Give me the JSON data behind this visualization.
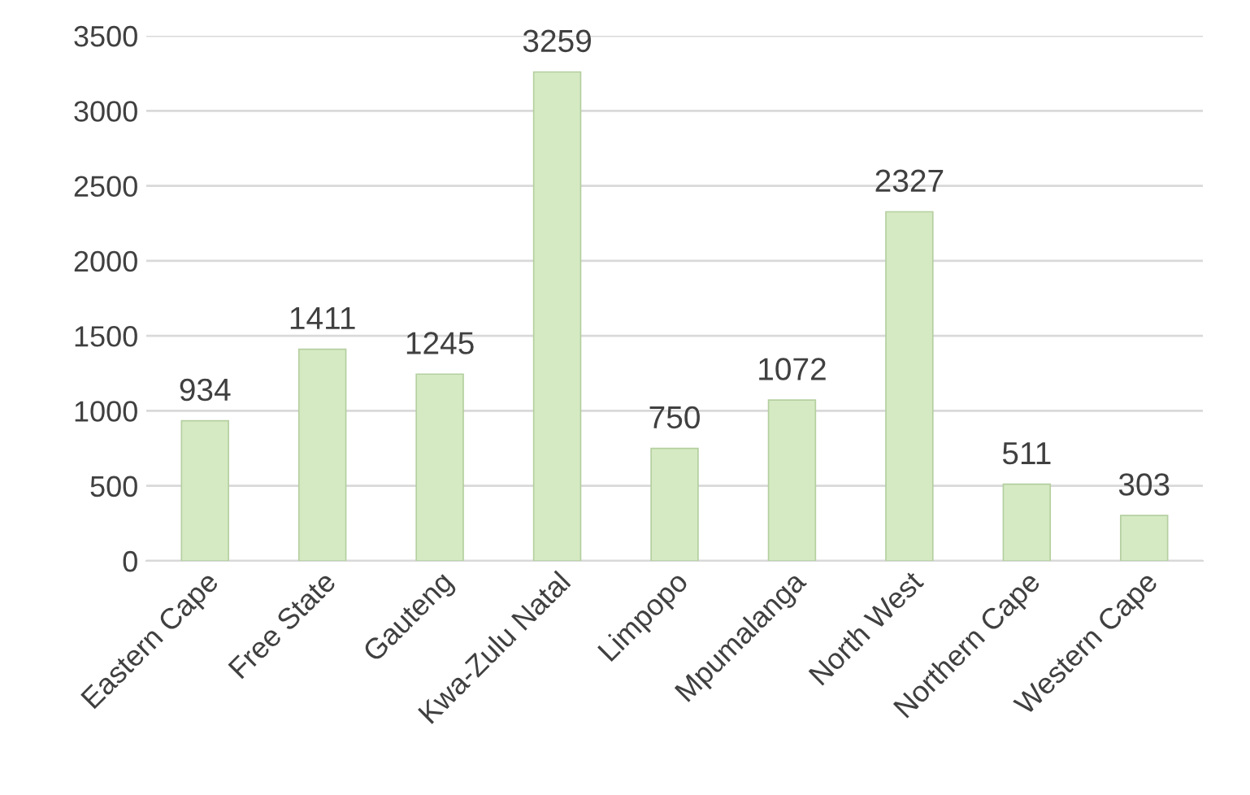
{
  "chart_data": {
    "type": "bar",
    "categories": [
      "Eastern Cape",
      "Free State",
      "Gauteng",
      "Kwa-Zulu Natal",
      "Limpopo",
      "Mpumalanga",
      "North West",
      "Northern Cape",
      "Western Cape"
    ],
    "values": [
      934,
      1411,
      1245,
      3259,
      750,
      1072,
      2327,
      511,
      303
    ],
    "color": "#d5eac3",
    "ylim": [
      0,
      3500
    ],
    "yticks": [
      0,
      500,
      1000,
      1500,
      2000,
      2500,
      3000,
      3500
    ],
    "grid": "y",
    "data_labels": true
  }
}
